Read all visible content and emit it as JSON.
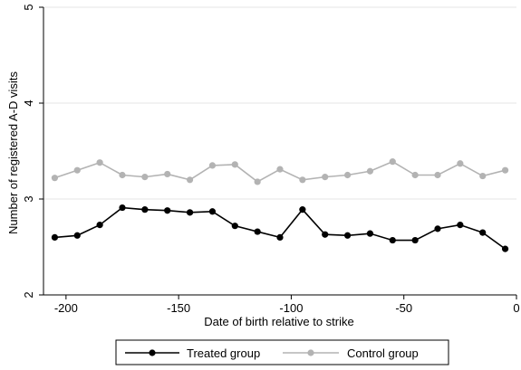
{
  "chart_data": {
    "type": "line",
    "xlabel": "Date of birth relative to strike",
    "ylabel": "Number of registered A-D visits",
    "xlim": [
      -210,
      0
    ],
    "ylim": [
      2,
      5
    ],
    "x_ticks": [
      -200,
      -150,
      -100,
      -50,
      0
    ],
    "y_ticks": [
      2,
      3,
      4,
      5
    ],
    "grid": "horizontal",
    "legend_position": "bottom",
    "series": [
      {
        "name": "Treated group",
        "color": "#000000",
        "x": [
          -205,
          -195,
          -185,
          -175,
          -165,
          -155,
          -145,
          -135,
          -125,
          -115,
          -105,
          -95,
          -85,
          -75,
          -65,
          -55,
          -45,
          -35,
          -25,
          -15,
          -5
        ],
        "y": [
          2.6,
          2.62,
          2.73,
          2.91,
          2.89,
          2.88,
          2.86,
          2.87,
          2.72,
          2.66,
          2.6,
          2.89,
          2.63,
          2.62,
          2.64,
          2.57,
          2.57,
          2.69,
          2.73,
          2.65,
          2.48
        ]
      },
      {
        "name": "Control group",
        "color": "#b3b3b3",
        "x": [
          -205,
          -195,
          -185,
          -175,
          -165,
          -155,
          -145,
          -135,
          -125,
          -115,
          -105,
          -95,
          -85,
          -75,
          -65,
          -55,
          -45,
          -35,
          -25,
          -15,
          -5
        ],
        "y": [
          3.22,
          3.3,
          3.38,
          3.25,
          3.23,
          3.26,
          3.2,
          3.35,
          3.36,
          3.18,
          3.31,
          3.2,
          3.23,
          3.25,
          3.29,
          3.39,
          3.25,
          3.25,
          3.37,
          3.24,
          3.3
        ]
      }
    ]
  }
}
